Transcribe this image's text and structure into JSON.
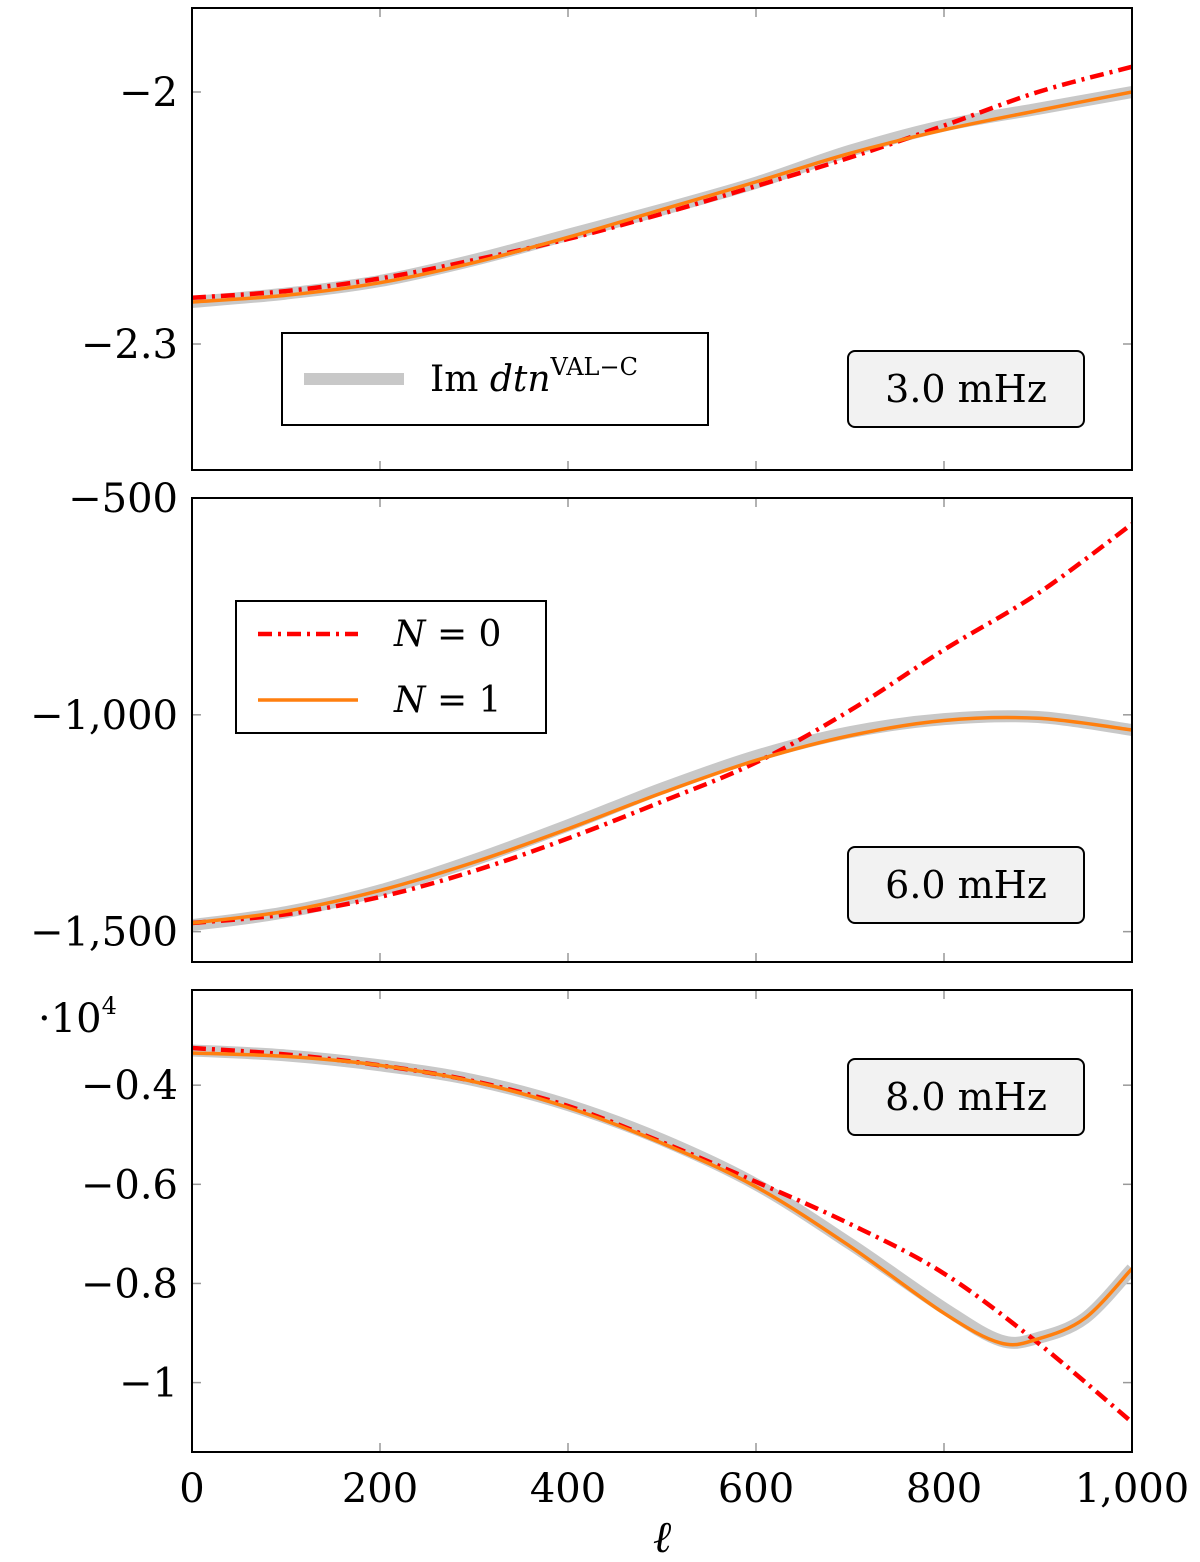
{
  "chart_data": [
    {
      "type": "line",
      "panel_label": "3.0 mHz",
      "xlim": [
        0,
        1000
      ],
      "ylim": [
        -2.45,
        -1.9
      ],
      "yticks": [
        -2.3,
        -2.0
      ],
      "ytick_labels": [
        "−2.3",
        "−2"
      ],
      "ylabel": "",
      "y_multiplier": "",
      "legend": {
        "position": "bottom-left",
        "entries": [
          {
            "series": "Im dtn VAL-C",
            "text_main": "Im ",
            "text_math": "dtn",
            "text_sup": "VAL−C"
          }
        ]
      },
      "series": [
        {
          "name": "Im dtn VAL-C",
          "style": "thick-gray",
          "x": [
            0,
            100,
            200,
            300,
            400,
            500,
            600,
            700,
            800,
            900,
            1000
          ],
          "y": [
            -2.25,
            -2.24,
            -2.225,
            -2.2,
            -2.17,
            -2.14,
            -2.108,
            -2.07,
            -2.04,
            -2.02,
            -2.0
          ]
        },
        {
          "name": "N = 0",
          "style": "red-dashdot",
          "x": [
            0,
            100,
            200,
            300,
            400,
            500,
            600,
            700,
            800,
            900,
            1000
          ],
          "y": [
            -2.245,
            -2.237,
            -2.222,
            -2.2,
            -2.175,
            -2.145,
            -2.112,
            -2.078,
            -2.04,
            -2.0,
            -1.97
          ]
        },
        {
          "name": "N = 1",
          "style": "orange-solid",
          "x": [
            0,
            100,
            200,
            300,
            400,
            500,
            600,
            700,
            800,
            900,
            1000
          ],
          "y": [
            -2.25,
            -2.242,
            -2.227,
            -2.203,
            -2.173,
            -2.14,
            -2.107,
            -2.073,
            -2.045,
            -2.022,
            -2.0
          ]
        }
      ]
    },
    {
      "type": "line",
      "panel_label": "6.0 mHz",
      "xlim": [
        0,
        1000
      ],
      "ylim": [
        -1570,
        -500
      ],
      "yticks": [
        -1500,
        -1000,
        -500
      ],
      "ytick_labels": [
        "−1,500",
        "−1,000",
        "−500"
      ],
      "ylabel": "",
      "y_multiplier": "",
      "legend": {
        "position": "top-left",
        "entries": [
          {
            "series": "N = 0",
            "text_math": "N",
            "text_rest": " = 0"
          },
          {
            "series": "N = 1",
            "text_math": "N",
            "text_rest": " = 1"
          }
        ]
      },
      "series": [
        {
          "name": "Im dtn VAL-C",
          "style": "thick-gray",
          "x": [
            0,
            100,
            200,
            300,
            400,
            500,
            600,
            700,
            800,
            900,
            1000
          ],
          "y": [
            -1485,
            -1455,
            -1405,
            -1335,
            -1255,
            -1170,
            -1095,
            -1040,
            -1010,
            -1005,
            -1035
          ]
        },
        {
          "name": "N = 0",
          "style": "red-dashdot",
          "x": [
            0,
            100,
            200,
            300,
            400,
            500,
            600,
            700,
            800,
            900,
            1000
          ],
          "y": [
            -1480,
            -1460,
            -1420,
            -1360,
            -1285,
            -1200,
            -1110,
            -990,
            -850,
            -720,
            -560
          ]
        },
        {
          "name": "N = 1",
          "style": "orange-solid",
          "x": [
            0,
            100,
            200,
            300,
            400,
            500,
            600,
            700,
            800,
            900,
            1000
          ],
          "y": [
            -1480,
            -1453,
            -1405,
            -1340,
            -1263,
            -1180,
            -1105,
            -1048,
            -1013,
            -1008,
            -1035
          ]
        }
      ]
    },
    {
      "type": "line",
      "panel_label": "8.0 mHz",
      "xlim": [
        0,
        1000
      ],
      "ylim": [
        -1.14,
        -0.208
      ],
      "yticks": [
        -1.0,
        -0.8,
        -0.6,
        -0.4
      ],
      "ytick_labels": [
        "−1",
        "−0.8",
        "−0.6",
        "−0.4"
      ],
      "xticks": [
        0,
        200,
        400,
        600,
        800,
        1000
      ],
      "xtick_labels": [
        "0",
        "200",
        "400",
        "600",
        "800",
        "1,000"
      ],
      "xlabel": "ℓ",
      "y_multiplier": "·10",
      "y_multiplier_exp": "4",
      "legend": null,
      "series": [
        {
          "name": "Im dtn VAL-C",
          "style": "thick-gray",
          "x": [
            0,
            100,
            200,
            300,
            400,
            500,
            600,
            700,
            800,
            860,
            900,
            950,
            1000
          ],
          "y": [
            -0.33,
            -0.34,
            -0.36,
            -0.39,
            -0.44,
            -0.51,
            -0.6,
            -0.72,
            -0.85,
            -0.915,
            -0.91,
            -0.87,
            -0.77
          ]
        },
        {
          "name": "N = 0",
          "style": "red-dashdot",
          "x": [
            0,
            100,
            200,
            300,
            400,
            500,
            600,
            700,
            800,
            900,
            1000
          ],
          "y": [
            -0.325,
            -0.338,
            -0.36,
            -0.392,
            -0.442,
            -0.515,
            -0.595,
            -0.68,
            -0.78,
            -0.92,
            -1.08
          ]
        },
        {
          "name": "N = 1",
          "style": "orange-solid",
          "x": [
            0,
            100,
            200,
            300,
            400,
            500,
            600,
            700,
            800,
            860,
            900,
            950,
            1000
          ],
          "y": [
            -0.335,
            -0.342,
            -0.36,
            -0.393,
            -0.445,
            -0.517,
            -0.605,
            -0.725,
            -0.86,
            -0.92,
            -0.912,
            -0.87,
            -0.77
          ]
        }
      ]
    }
  ]
}
